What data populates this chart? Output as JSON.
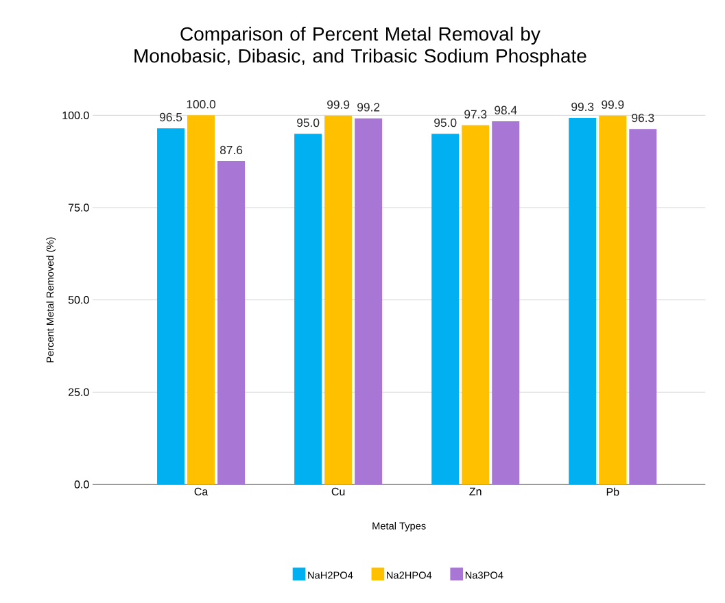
{
  "chart_data": {
    "type": "bar",
    "title": "Comparison of Percent Metal Removal by Monobasic, Dibasic, and Tribasic Sodium Phosphate",
    "xlabel": "Metal Types",
    "ylabel": "Percent Metal Removed (%)",
    "categories": [
      "Ca",
      "Cu",
      "Zn",
      "Pb"
    ],
    "series": [
      {
        "name": "NaH2PO4",
        "color": "#00b0f0",
        "values": [
          96.5,
          95.0,
          95.0,
          99.3
        ],
        "value_labels": [
          "96.5",
          "95.0",
          "95.0",
          "99.3"
        ]
      },
      {
        "name": "Na2HPO4",
        "color": "#ffc000",
        "values": [
          100.0,
          99.9,
          97.3,
          99.9
        ],
        "value_labels": [
          "100.0",
          "99.9",
          "97.3",
          "99.9"
        ]
      },
      {
        "name": "Na3PO4",
        "color": "#a877d6",
        "values": [
          87.6,
          99.2,
          98.4,
          96.3
        ],
        "value_labels": [
          "87.6",
          "99.2",
          "98.4",
          "96.3"
        ]
      }
    ],
    "ylim": [
      0,
      100
    ],
    "yticks": [
      {
        "value": 0,
        "label": "0.0"
      },
      {
        "value": 25,
        "label": "25.0"
      },
      {
        "value": 50,
        "label": "50.0"
      },
      {
        "value": 75,
        "label": "75.0"
      },
      {
        "value": 100,
        "label": "100.0"
      }
    ],
    "grid": "y",
    "legend": "bottom"
  }
}
